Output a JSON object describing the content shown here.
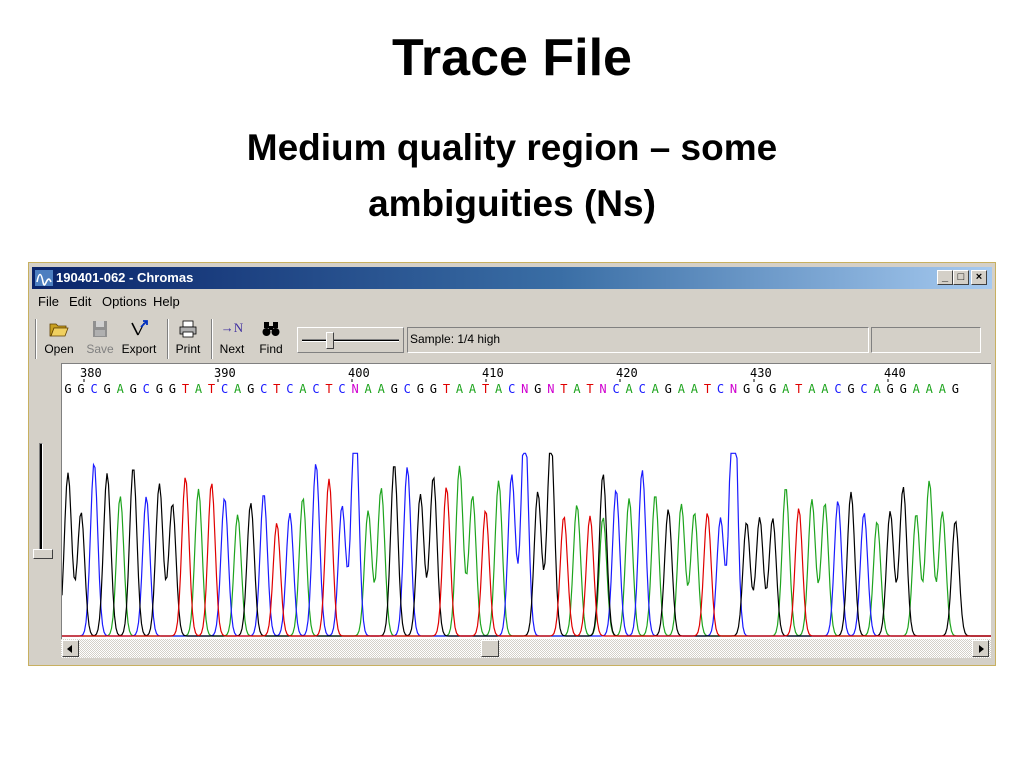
{
  "slide": {
    "title": "Trace File",
    "subtitle_line1": "Medium quality region – some",
    "subtitle_line2": "ambiguities (Ns)"
  },
  "window": {
    "title": "190401-062 - Chromas",
    "controls": {
      "minimize": "_",
      "maximize": "□",
      "close": "×"
    }
  },
  "menu": [
    "File",
    "Edit",
    "Options",
    "Help"
  ],
  "toolbar": {
    "open": {
      "label": "Open",
      "icon": "folder-open-icon"
    },
    "save": {
      "label": "Save",
      "icon": "floppy-disk-icon",
      "enabled": false
    },
    "export": {
      "label": "Export",
      "icon": "export-arrow-icon"
    },
    "print": {
      "label": "Print",
      "icon": "printer-icon"
    },
    "next": {
      "label": "Next",
      "icon": "next-n-icon",
      "glyph": "→N"
    },
    "find": {
      "label": "Find",
      "icon": "binoculars-icon"
    },
    "sample_status": "Sample: 1/4 high",
    "status2": "",
    "status3": ""
  },
  "trace": {
    "positions": [
      "380",
      "390",
      "400",
      "410",
      "420",
      "430",
      "440"
    ],
    "sequence": "GGCGAGCGGTATCAGCTCACTCNAAGCGGTAATACNGNTATNCACAGAATCNGGGATAACGCAGGAAAG",
    "base_colors": {
      "A": "#1ea41e",
      "C": "#1a1aff",
      "G": "#000000",
      "T": "#e00000",
      "N": "#d000d0"
    }
  }
}
